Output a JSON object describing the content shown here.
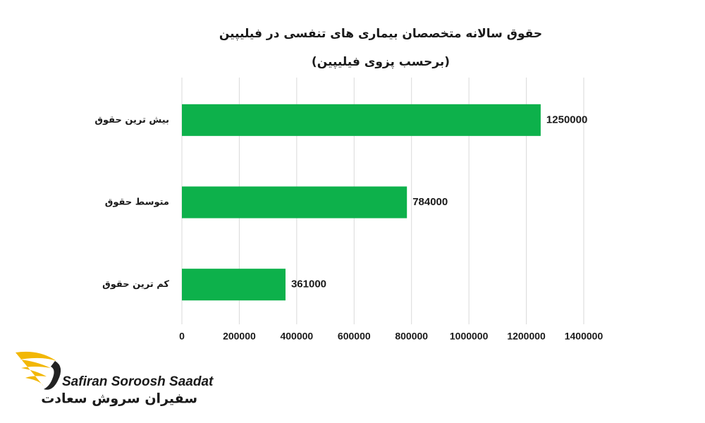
{
  "chart_data": {
    "type": "bar",
    "orientation": "horizontal",
    "title": "حقوق سالانه متخصصان بیماری های تنفسی در فیلیپین",
    "subtitle": "(برحسب پزوی فیلیپین)",
    "categories": [
      "بیش ترین حقوق",
      "متوسط حقوق",
      "کم ترین حقوق"
    ],
    "values": [
      1250000,
      784000,
      361000
    ],
    "color": "#0db14b",
    "xlim": [
      0,
      1400000
    ],
    "xticks": [
      0,
      200000,
      400000,
      600000,
      800000,
      1000000,
      1200000,
      1400000
    ],
    "grid": true
  },
  "logo": {
    "text_en": "Safiran Soroosh Saadat",
    "text_fa": "سفیران سروش سعادت"
  }
}
